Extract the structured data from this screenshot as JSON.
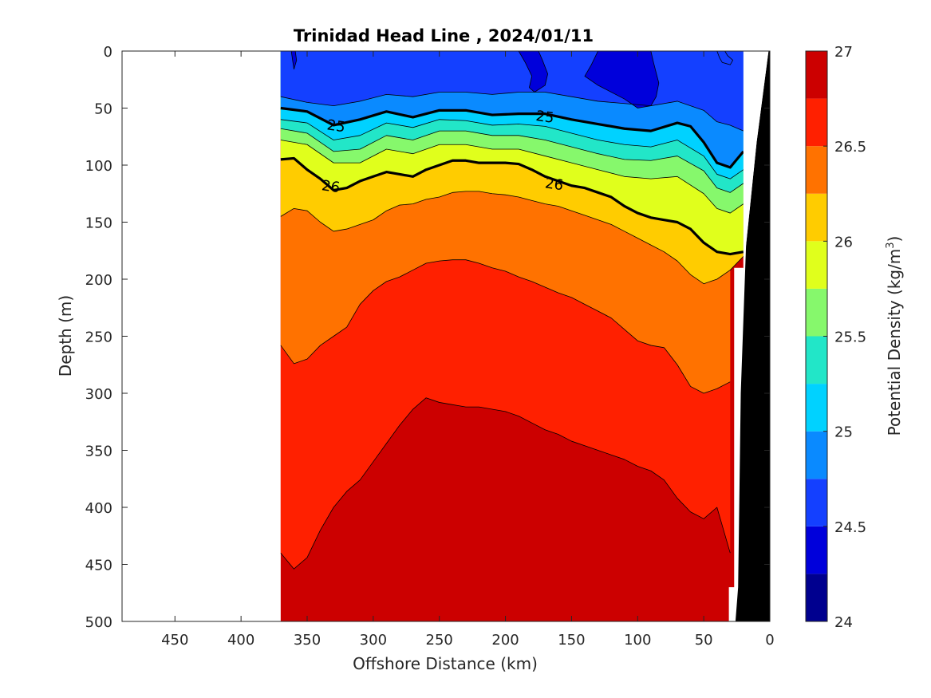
{
  "chart_data": {
    "type": "contour",
    "title": "Trinidad Head Line , 2024/01/11",
    "xlabel": "Offshore Distance (km)",
    "ylabel": "Depth (m)",
    "colorbar_label": "Potential Density (kg/m",
    "colorbar_label_superscript": "3",
    "colorbar_label_suffix": ")",
    "x_reversed": true,
    "xlim": [
      0,
      490
    ],
    "ylim": [
      0,
      500
    ],
    "y_reversed": true,
    "x_ticks": [
      450,
      400,
      350,
      300,
      250,
      200,
      150,
      100,
      50,
      0
    ],
    "y_ticks": [
      0,
      50,
      100,
      150,
      200,
      250,
      300,
      350,
      400,
      450,
      500
    ],
    "colorbar_range": [
      24,
      27
    ],
    "colorbar_ticks": [
      24,
      24.5,
      25,
      25.5,
      26,
      26.5,
      27
    ],
    "colorbar_levels": [
      24,
      24.25,
      24.5,
      24.75,
      25,
      25.25,
      25.5,
      25.75,
      26,
      26.25,
      26.5,
      26.75,
      27
    ],
    "colorbar_colors": [
      "#00008f",
      "#0000db",
      "#1440ff",
      "#0a8aff",
      "#00d2ff",
      "#22e6c8",
      "#86f86c",
      "#e0ff1c",
      "#ffcc00",
      "#ff7200",
      "#ff2000",
      "#cc0000"
    ],
    "data_x_range_km": [
      20,
      370
    ],
    "contour_labels": [
      {
        "value": "25",
        "x": 328,
        "y": 65
      },
      {
        "value": "25",
        "x": 170,
        "y": 57
      },
      {
        "value": "26",
        "x": 332,
        "y": 118
      },
      {
        "value": "26",
        "x": 163,
        "y": 116
      }
    ],
    "isopycnals": [
      {
        "level": 24.75,
        "x": [
          370,
          350,
          330,
          310,
          290,
          270,
          250,
          230,
          210,
          190,
          170,
          150,
          130,
          110,
          90,
          70,
          50,
          40,
          30,
          20
        ],
        "y": [
          40,
          45,
          48,
          44,
          38,
          40,
          36,
          36,
          38,
          36,
          36,
          40,
          44,
          46,
          48,
          44,
          52,
          62,
          65,
          70
        ]
      },
      {
        "level": 25.0,
        "x": [
          370,
          350,
          330,
          310,
          290,
          270,
          250,
          230,
          210,
          190,
          170,
          150,
          130,
          110,
          90,
          70,
          60,
          50,
          40,
          30,
          20
        ],
        "y": [
          50,
          53,
          65,
          60,
          53,
          58,
          52,
          52,
          56,
          55,
          55,
          60,
          64,
          68,
          70,
          63,
          66,
          80,
          98,
          102,
          88
        ]
      },
      {
        "level": 25.25,
        "x": [
          370,
          350,
          330,
          310,
          290,
          270,
          250,
          230,
          210,
          190,
          170,
          150,
          130,
          110,
          90,
          70,
          50,
          40,
          30,
          20
        ],
        "y": [
          60,
          63,
          78,
          74,
          63,
          67,
          60,
          61,
          65,
          64,
          66,
          72,
          78,
          82,
          84,
          78,
          92,
          108,
          112,
          104
        ]
      },
      {
        "level": 25.5,
        "x": [
          370,
          350,
          330,
          310,
          290,
          270,
          250,
          230,
          210,
          190,
          170,
          150,
          130,
          110,
          90,
          70,
          50,
          40,
          30,
          20
        ],
        "y": [
          68,
          72,
          88,
          86,
          74,
          78,
          70,
          70,
          74,
          74,
          78,
          84,
          90,
          95,
          96,
          92,
          105,
          120,
          124,
          116
        ]
      },
      {
        "level": 25.75,
        "x": [
          370,
          350,
          330,
          310,
          290,
          270,
          250,
          230,
          210,
          190,
          170,
          150,
          130,
          110,
          90,
          70,
          50,
          40,
          30,
          20
        ],
        "y": [
          78,
          82,
          98,
          98,
          86,
          90,
          82,
          82,
          86,
          86,
          92,
          98,
          104,
          110,
          112,
          110,
          125,
          138,
          142,
          134
        ]
      },
      {
        "level": 26.0,
        "x": [
          370,
          360,
          350,
          340,
          330,
          320,
          310,
          300,
          290,
          280,
          270,
          260,
          250,
          240,
          230,
          220,
          210,
          200,
          190,
          180,
          170,
          160,
          150,
          140,
          130,
          120,
          110,
          100,
          90,
          80,
          70,
          60,
          50,
          40,
          30,
          20
        ],
        "y": [
          95,
          94,
          104,
          112,
          122,
          120,
          114,
          110,
          106,
          108,
          110,
          104,
          100,
          96,
          96,
          98,
          98,
          98,
          99,
          104,
          110,
          114,
          118,
          120,
          124,
          128,
          136,
          142,
          146,
          148,
          150,
          156,
          168,
          176,
          178,
          176
        ]
      },
      {
        "level": 26.25,
        "x": [
          370,
          360,
          350,
          340,
          330,
          320,
          310,
          300,
          290,
          280,
          270,
          260,
          250,
          240,
          230,
          220,
          210,
          200,
          190,
          180,
          170,
          160,
          150,
          140,
          130,
          120,
          110,
          100,
          90,
          80,
          70,
          60,
          50,
          40,
          30,
          20
        ],
        "y": [
          145,
          138,
          140,
          150,
          158,
          156,
          152,
          148,
          140,
          135,
          134,
          130,
          128,
          124,
          123,
          123,
          125,
          126,
          128,
          131,
          134,
          136,
          140,
          144,
          148,
          152,
          158,
          164,
          170,
          176,
          184,
          196,
          204,
          200,
          192,
          180
        ]
      },
      {
        "level": 26.5,
        "x": [
          370,
          360,
          350,
          340,
          330,
          320,
          310,
          300,
          290,
          280,
          270,
          260,
          250,
          240,
          230,
          220,
          210,
          200,
          190,
          180,
          170,
          160,
          150,
          140,
          130,
          120,
          110,
          100,
          90,
          80,
          70,
          60,
          50,
          40,
          30
        ],
        "y": [
          258,
          274,
          270,
          258,
          250,
          242,
          222,
          210,
          202,
          198,
          192,
          186,
          184,
          183,
          183,
          186,
          190,
          193,
          198,
          202,
          207,
          212,
          216,
          222,
          228,
          234,
          244,
          254,
          258,
          260,
          275,
          294,
          300,
          296,
          290
        ]
      },
      {
        "level": 26.75,
        "x": [
          370,
          360,
          350,
          340,
          330,
          320,
          310,
          300,
          290,
          280,
          270,
          260,
          250,
          240,
          230,
          220,
          210,
          200,
          190,
          180,
          170,
          160,
          150,
          140,
          130,
          120,
          110,
          100,
          90,
          80,
          70,
          60,
          50,
          40,
          30
        ],
        "y": [
          440,
          454,
          444,
          420,
          400,
          386,
          376,
          360,
          344,
          328,
          314,
          304,
          308,
          310,
          312,
          312,
          314,
          316,
          320,
          326,
          332,
          336,
          342,
          346,
          350,
          354,
          358,
          364,
          368,
          376,
          392,
          404,
          410,
          400,
          440
        ]
      }
    ],
    "blobs": [
      {
        "level": 24.5,
        "pts": [
          [
            190,
            0
          ],
          [
            185,
            10
          ],
          [
            180,
            22
          ],
          [
            182,
            32
          ],
          [
            178,
            36
          ],
          [
            170,
            30
          ],
          [
            168,
            20
          ],
          [
            172,
            8
          ],
          [
            175,
            0
          ]
        ]
      },
      {
        "level": 24.5,
        "pts": [
          [
            130,
            0
          ],
          [
            135,
            12
          ],
          [
            140,
            22
          ],
          [
            130,
            30
          ],
          [
            110,
            42
          ],
          [
            100,
            50
          ],
          [
            90,
            48
          ],
          [
            86,
            40
          ],
          [
            84,
            28
          ],
          [
            88,
            10
          ],
          [
            90,
            0
          ]
        ]
      },
      {
        "level": 24.5,
        "pts": [
          [
            362,
            0
          ],
          [
            361,
            8
          ],
          [
            360,
            16
          ],
          [
            358,
            8
          ],
          [
            359,
            0
          ]
        ]
      },
      {
        "level": 24.75,
        "pts": [
          [
            40,
            0
          ],
          [
            38,
            6
          ],
          [
            36,
            10
          ],
          [
            30,
            12
          ],
          [
            28,
            8
          ],
          [
            32,
            4
          ],
          [
            34,
            0
          ]
        ]
      }
    ],
    "land": {
      "x": [
        0,
        30,
        30,
        26,
        24,
        20,
        20,
        26,
        26,
        40,
        40,
        48,
        48,
        20,
        18,
        10,
        8,
        0
      ],
      "y": [
        0,
        0,
        500,
        500,
        470,
        300,
        280,
        180,
        200,
        200,
        460,
        462,
        500,
        500,
        500,
        300,
        240,
        0
      ]
    }
  }
}
